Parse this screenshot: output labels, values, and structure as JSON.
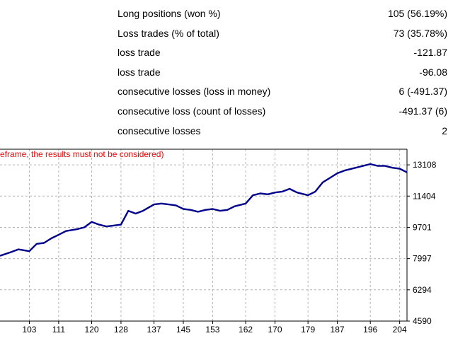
{
  "stats": {
    "rows": [
      {
        "label": "Long positions (won %)",
        "value": "105 (56.19%)"
      },
      {
        "label": "Loss trades (% of total)",
        "value": "73 (35.78%)"
      },
      {
        "label": "loss trade",
        "value": "-121.87"
      },
      {
        "label": "loss trade",
        "value": "-96.08"
      },
      {
        "label": "consecutive losses (loss in money)",
        "value": "6 (-491.37)"
      },
      {
        "label": "consecutive loss (count of losses)",
        "value": "-491.37 (6)"
      },
      {
        "label": "consecutive losses",
        "value": "2"
      }
    ]
  },
  "chart_data": {
    "type": "line",
    "title": "eframe, the results must not be considered)",
    "title_color": "#ff0000",
    "line_color": "#00008b",
    "grid": true,
    "grid_style": "dashed",
    "y_axis_side": "right",
    "x_ticks": [
      "103",
      "111",
      "120",
      "128",
      "137",
      "145",
      "153",
      "162",
      "170",
      "179",
      "187",
      "196",
      "204"
    ],
    "y_ticks": [
      "13108",
      "11404",
      "9701",
      "7997",
      "6294",
      "4590"
    ],
    "xlim": [
      95,
      206
    ],
    "ylim": [
      4590,
      13960
    ],
    "series": [
      {
        "x": [
          95,
          98,
          100,
          103,
          105,
          107,
          109,
          111,
          113,
          116,
          118,
          120,
          122,
          124,
          126,
          128,
          130,
          132,
          134,
          137,
          139,
          141,
          143,
          145,
          147,
          149,
          151,
          153,
          155,
          157,
          159,
          162,
          164,
          166,
          168,
          170,
          172,
          174,
          176,
          179,
          181,
          183,
          185,
          187,
          189,
          192,
          194,
          196,
          198,
          200,
          202,
          204,
          206
        ],
        "y": [
          8150,
          8350,
          8500,
          8400,
          8800,
          8850,
          9100,
          9300,
          9500,
          9600,
          9700,
          10000,
          9850,
          9750,
          9800,
          9850,
          10600,
          10450,
          10600,
          10950,
          11000,
          10950,
          10900,
          10700,
          10650,
          10550,
          10650,
          10700,
          10600,
          10650,
          10850,
          11000,
          11450,
          11550,
          11500,
          11600,
          11650,
          11800,
          11600,
          11450,
          11650,
          12150,
          12400,
          12650,
          12800,
          12950,
          13050,
          13150,
          13050,
          13050,
          12950,
          12900,
          12700
        ]
      }
    ]
  }
}
